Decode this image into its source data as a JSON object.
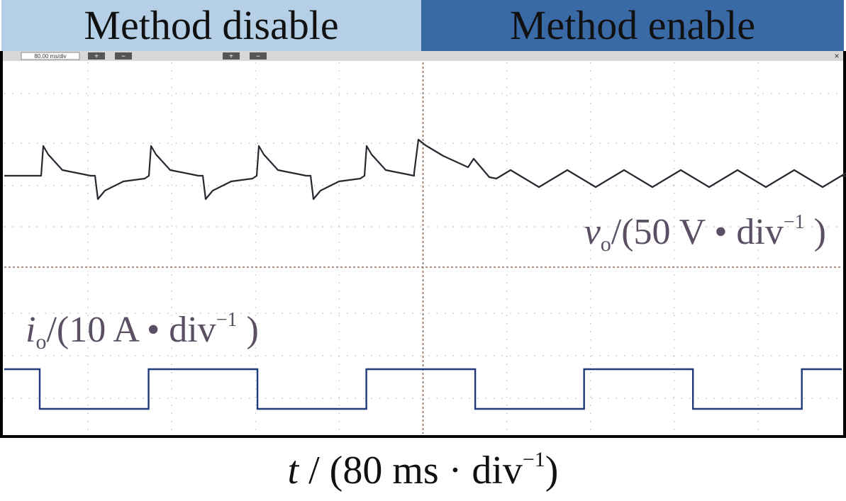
{
  "header": {
    "left_label": "Method disable",
    "right_label": "Method enable",
    "left_color": "#b5d0e6",
    "right_color": "#3a6aa6"
  },
  "chart_data": {
    "type": "line",
    "title": "",
    "x_unit_label": "t / (80 ms · div⁻¹)",
    "x_divisions": 10,
    "method_switch_div": 5,
    "grid": "dotted",
    "series": [
      {
        "name": "vo",
        "label": "vo/(50 V · div⁻¹)",
        "color": "#2b2530",
        "unit": "div",
        "baseline_div": 0.0,
        "disable": {
          "pulse_period_div": 1.3,
          "overshoot_up_div": 0.7,
          "undershoot_down_div": -0.55
        },
        "enable": {
          "initial_overshoot_div": 0.85,
          "ripple_div": 0.2
        }
      },
      {
        "name": "io",
        "label": "io/(10 A · div⁻¹)",
        "color": "#1f3a7a",
        "unit": "div",
        "high_div": 1.0,
        "low_div": 0.0,
        "square_wave_period_div": 2.6
      }
    ]
  },
  "scope_toolbar": {
    "timebase": "80.00 ms/div",
    "button_plus": "+",
    "button_minus": "−",
    "close": "×"
  }
}
